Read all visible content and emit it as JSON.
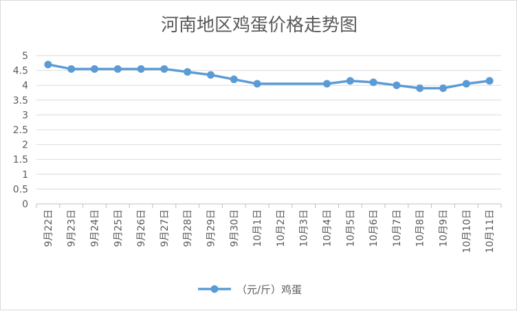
{
  "chart_data": {
    "type": "line",
    "title": "河南地区鸡蛋价格走势图",
    "xlabel": "",
    "ylabel": "",
    "categories": [
      "9月22日",
      "9月23日",
      "9月24日",
      "9月25日",
      "9月26日",
      "9月27日",
      "9月28日",
      "9月29日",
      "9月30日",
      "10月1日",
      "10月2日",
      "10月3日",
      "10月4日",
      "10月5日",
      "10月6日",
      "10月7日",
      "10月8日",
      "10月9日",
      "10月10日",
      "10月11日"
    ],
    "series": [
      {
        "name": "（元/斤）鸡蛋",
        "color": "#5b9bd5",
        "values": [
          4.7,
          4.55,
          4.55,
          4.55,
          4.55,
          4.55,
          4.45,
          4.35,
          4.2,
          4.05,
          4.05,
          4.05,
          4.05,
          4.15,
          4.1,
          4.0,
          3.9,
          3.9,
          4.05,
          4.15
        ],
        "markers": [
          true,
          true,
          true,
          true,
          true,
          true,
          true,
          true,
          true,
          true,
          false,
          false,
          true,
          true,
          true,
          true,
          true,
          true,
          true,
          true
        ]
      }
    ],
    "ylim": [
      0,
      5
    ],
    "yticks": [
      "0",
      "0.5",
      "1",
      "1.5",
      "2",
      "2.5",
      "3",
      "3.5",
      "4",
      "4.5",
      "5"
    ],
    "grid": true,
    "legend_position": "bottom"
  }
}
